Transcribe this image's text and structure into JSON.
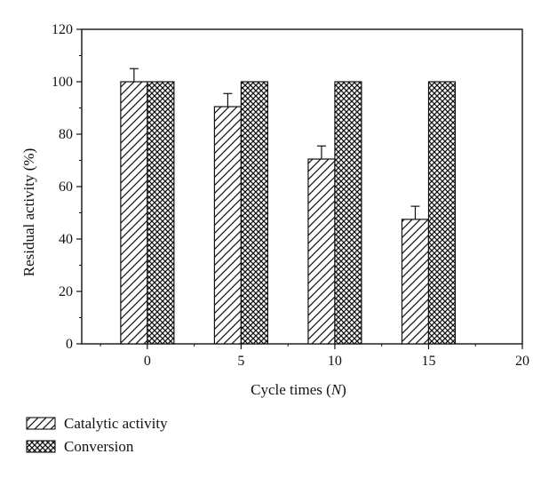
{
  "chart_data": {
    "type": "bar",
    "x": [
      0,
      5,
      10,
      15
    ],
    "xlim": [
      -3.5,
      20
    ],
    "xticks": [
      "0",
      "5",
      "10",
      "15",
      "20"
    ],
    "xtick_values": [
      0,
      5,
      10,
      15,
      20
    ],
    "ylim": [
      0,
      120
    ],
    "yticks": [
      "0",
      "20",
      "40",
      "60",
      "80",
      "100",
      "120"
    ],
    "ytick_values": [
      0,
      20,
      40,
      60,
      80,
      100,
      120
    ],
    "xlabel_prefix": "Cycle times (",
    "xlabel_var": "N",
    "xlabel_suffix": ")",
    "ylabel": "Residual activity (%)",
    "grid": false,
    "legend_position": "bottom-left, outside plot",
    "series": [
      {
        "name": "Catalytic activity",
        "values": [
          100,
          90.5,
          70.5,
          47.5
        ],
        "error": [
          5,
          5,
          5,
          5
        ],
        "pattern": "diagonal-hatch"
      },
      {
        "name": "Conversion",
        "values": [
          100,
          100,
          100,
          100
        ],
        "pattern": "crosshatch"
      }
    ]
  }
}
